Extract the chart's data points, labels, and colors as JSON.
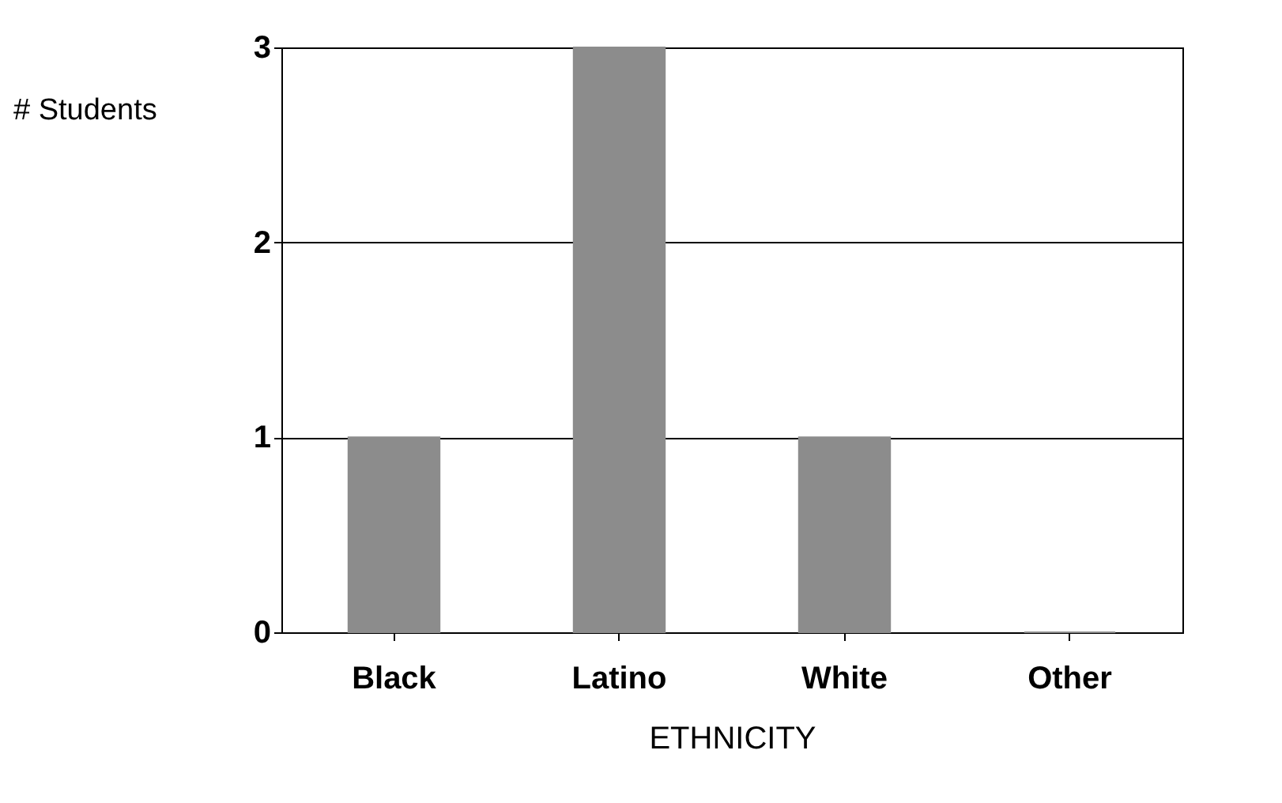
{
  "chart_data": {
    "type": "bar",
    "categories": [
      "Black",
      "Latino",
      "White",
      "Other"
    ],
    "values": [
      1,
      3,
      1,
      0
    ],
    "color": "#8c8c8c",
    "xlabel": "ETHNICITY",
    "ylabel": "# Students",
    "ylim": [
      0,
      3
    ],
    "yticks": [
      0,
      1,
      2,
      3
    ],
    "grid": "y"
  }
}
